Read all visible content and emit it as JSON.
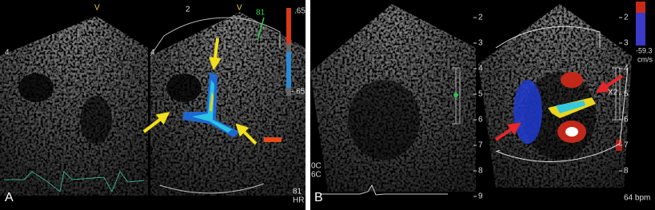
{
  "panel_a": {
    "label": "A",
    "markers": [
      "V",
      "V"
    ],
    "scale_top": ".65",
    "scale_bottom": "-.65",
    "side_marks": [
      "4",
      "2",
      "4"
    ],
    "angle": "81",
    "footer": [
      "81",
      "HR"
    ]
  },
  "panel_b": {
    "label": "B",
    "depth_left": [
      "2",
      "3",
      "4",
      "5",
      "6",
      "7",
      "8",
      "9"
    ],
    "depth_right": [
      "2",
      "3",
      "4",
      "5",
      "6",
      "7",
      "8"
    ],
    "velocity": "-59.3",
    "velocity_unit": "cm/s",
    "zoom": "X2",
    "rate": "64 bpm",
    "settings": [
      "0C",
      "6C"
    ]
  }
}
